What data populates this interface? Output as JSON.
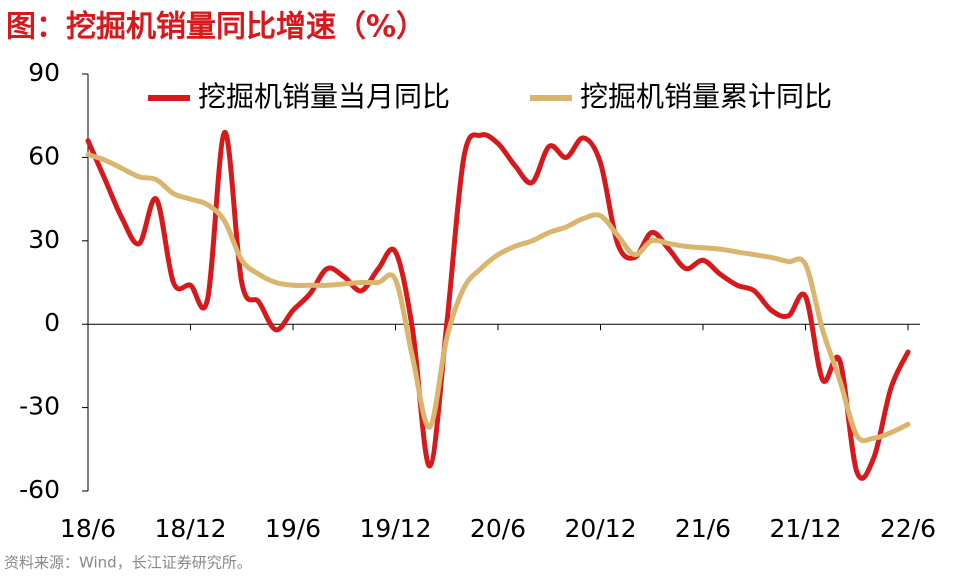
{
  "chart_data": {
    "type": "line",
    "title": "图：挖掘机销量同比增速（%）",
    "source": "资料来源：Wind，长江证券研究所。",
    "categories": [
      "18/6",
      null,
      null,
      null,
      null,
      null,
      "18/12",
      null,
      null,
      null,
      null,
      null,
      "19/6",
      null,
      null,
      null,
      null,
      null,
      "19/12",
      null,
      null,
      null,
      null,
      null,
      "20/6",
      null,
      null,
      null,
      null,
      null,
      "20/12",
      null,
      null,
      null,
      null,
      null,
      "21/6",
      null,
      null,
      null,
      null,
      null,
      "21/12",
      null,
      null,
      null,
      null,
      null,
      "22/6"
    ],
    "series": [
      {
        "name": "挖掘机销量当月同比",
        "color": "#d7191c",
        "values": [
          66,
          52,
          38,
          29,
          45,
          15,
          14,
          9,
          69,
          15,
          8,
          -2,
          5,
          11,
          20,
          17,
          12,
          20,
          26,
          -2,
          -51,
          0,
          60,
          68,
          65,
          57,
          51,
          64,
          60,
          67,
          58,
          29,
          24,
          33,
          27,
          20,
          23,
          18,
          14,
          12,
          5,
          3,
          10,
          -20,
          -13,
          -53,
          -48,
          -23,
          -10
        ]
      },
      {
        "name": "挖掘机销量累计同比",
        "color": "#d9b56e",
        "values": [
          61,
          59,
          56,
          53,
          52,
          47,
          45,
          43,
          37,
          23,
          18,
          15,
          14,
          14,
          14,
          14.5,
          15,
          15,
          16,
          -12,
          -37,
          -5,
          13,
          20,
          25,
          28,
          30,
          33,
          35,
          38,
          39,
          32,
          25,
          30,
          29,
          28,
          27.5,
          27,
          26,
          25,
          24,
          22.5,
          21.5,
          -2,
          -20,
          -40,
          -41,
          -39,
          -36
        ]
      }
    ],
    "ylim": [
      -60,
      90
    ],
    "yticks": [
      -60,
      -30,
      0,
      30,
      60,
      90
    ],
    "legend": "top"
  }
}
